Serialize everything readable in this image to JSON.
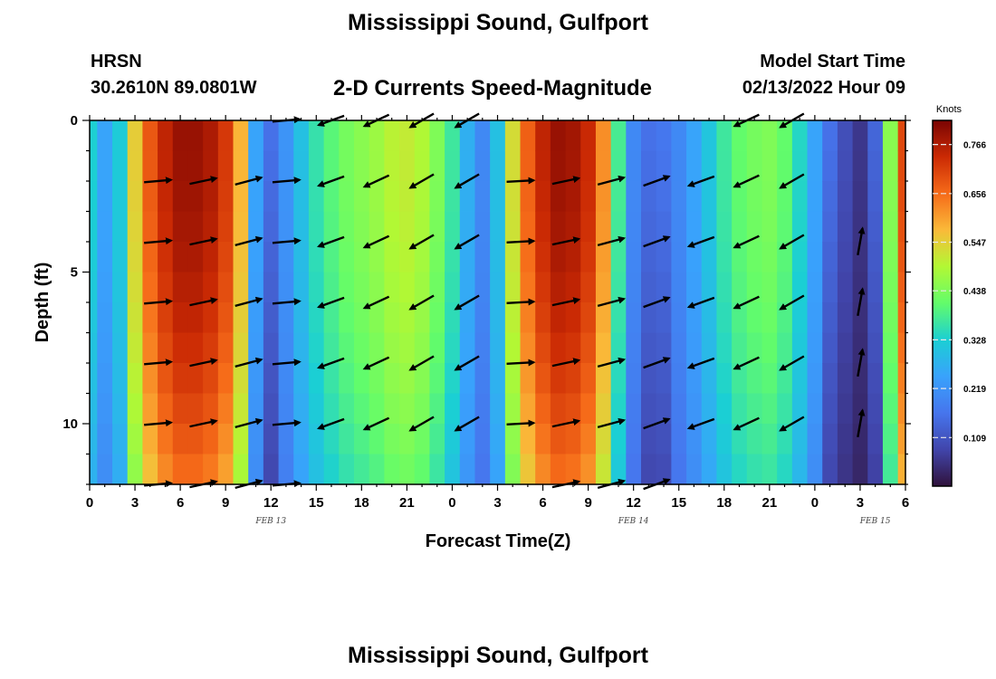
{
  "header": {
    "title": "Mississippi Sound, Gulfport",
    "model": "HRSN",
    "coordinates": "30.2610N  89.0801W",
    "product": "2-D Currents Speed-Magnitude",
    "start_label": "Model Start Time",
    "start_value": "02/13/2022 Hour 09"
  },
  "footer": {
    "title": "Mississippi Sound, Gulfport"
  },
  "chart_data": {
    "type": "heatmap",
    "title": "2-D Currents Speed-Magnitude",
    "xlabel": "Forecast Time(Z)",
    "ylabel": "Depth (ft)",
    "x_range_hours": [
      0,
      54
    ],
    "y_range": [
      0,
      12
    ],
    "y_inverted": true,
    "x_tick_labels": [
      "0",
      "3",
      "6",
      "9",
      "12",
      "15",
      "18",
      "21",
      "0",
      "3",
      "6",
      "9",
      "12",
      "15",
      "18",
      "21",
      "0",
      "3",
      "6"
    ],
    "y_ticks": [
      0,
      5,
      10
    ],
    "date_labels": [
      {
        "label": "FEB 13",
        "hour": 12
      },
      {
        "label": "FEB 14",
        "hour": 36
      },
      {
        "label": "FEB 15",
        "hour": 52
      }
    ],
    "colorbar": {
      "unit": "Knots",
      "min": 0.0,
      "max": 0.82,
      "ticks": [
        "0.766",
        "0.656",
        "0.547",
        "0.438",
        "0.328",
        "0.219",
        "0.109"
      ],
      "tick_values": [
        0.766,
        0.656,
        0.547,
        0.438,
        0.328,
        0.219,
        0.109
      ]
    },
    "surface_speed_profile_knots": [
      {
        "hour": 0,
        "speed": 0.33
      },
      {
        "hour": 1,
        "speed": 0.25
      },
      {
        "hour": 2,
        "speed": 0.32
      },
      {
        "hour": 3,
        "speed": 0.55
      },
      {
        "hour": 4,
        "speed": 0.68
      },
      {
        "hour": 5,
        "speed": 0.75
      },
      {
        "hour": 6,
        "speed": 0.79
      },
      {
        "hour": 7,
        "speed": 0.79
      },
      {
        "hour": 8,
        "speed": 0.77
      },
      {
        "hour": 9,
        "speed": 0.72
      },
      {
        "hour": 10,
        "speed": 0.58
      },
      {
        "hour": 11,
        "speed": 0.25
      },
      {
        "hour": 12,
        "speed": 0.16
      },
      {
        "hour": 13,
        "speed": 0.22
      },
      {
        "hour": 14,
        "speed": 0.3
      },
      {
        "hour": 15,
        "speed": 0.36
      },
      {
        "hour": 16,
        "speed": 0.4
      },
      {
        "hour": 17,
        "speed": 0.43
      },
      {
        "hour": 18,
        "speed": 0.45
      },
      {
        "hour": 19,
        "speed": 0.47
      },
      {
        "hour": 20,
        "speed": 0.5
      },
      {
        "hour": 21,
        "speed": 0.51
      },
      {
        "hour": 22,
        "speed": 0.49
      },
      {
        "hour": 23,
        "speed": 0.44
      },
      {
        "hour": 24,
        "speed": 0.37
      },
      {
        "hour": 25,
        "speed": 0.27
      },
      {
        "hour": 26,
        "speed": 0.2
      },
      {
        "hour": 27,
        "speed": 0.3
      },
      {
        "hour": 28,
        "speed": 0.53
      },
      {
        "hour": 29,
        "speed": 0.67
      },
      {
        "hour": 30,
        "speed": 0.75
      },
      {
        "hour": 31,
        "speed": 0.79
      },
      {
        "hour": 32,
        "speed": 0.78
      },
      {
        "hour": 33,
        "speed": 0.74
      },
      {
        "hour": 34,
        "speed": 0.62
      },
      {
        "hour": 35,
        "speed": 0.38
      },
      {
        "hour": 36,
        "speed": 0.2
      },
      {
        "hour": 37,
        "speed": 0.16
      },
      {
        "hour": 38,
        "speed": 0.17
      },
      {
        "hour": 39,
        "speed": 0.2
      },
      {
        "hour": 40,
        "speed": 0.25
      },
      {
        "hour": 41,
        "speed": 0.31
      },
      {
        "hour": 42,
        "speed": 0.37
      },
      {
        "hour": 43,
        "speed": 0.41
      },
      {
        "hour": 44,
        "speed": 0.43
      },
      {
        "hour": 45,
        "speed": 0.44
      },
      {
        "hour": 46,
        "speed": 0.41
      },
      {
        "hour": 47,
        "speed": 0.34
      },
      {
        "hour": 48,
        "speed": 0.25
      },
      {
        "hour": 49,
        "speed": 0.16
      },
      {
        "hour": 50,
        "speed": 0.1
      },
      {
        "hour": 51,
        "speed": 0.06
      },
      {
        "hour": 52,
        "speed": 0.14
      },
      {
        "hour": 53,
        "speed": 0.45
      },
      {
        "hour": 54,
        "speed": 0.7
      }
    ],
    "vector_rows_depth_ft": [
      0,
      2,
      4,
      6,
      8,
      10,
      12
    ],
    "vector_columns": [
      {
        "hour": 4.5,
        "dir_deg": 5,
        "depths": [
          2,
          4,
          6,
          8,
          10,
          12
        ]
      },
      {
        "hour": 7.5,
        "dir_deg": 12,
        "depths": [
          2,
          4,
          6,
          8,
          10,
          12
        ]
      },
      {
        "hour": 10.5,
        "dir_deg": 15,
        "depths": [
          2,
          4,
          6,
          8,
          10,
          12
        ]
      },
      {
        "hour": 13.0,
        "dir_deg": 5,
        "depths": [
          0,
          2,
          4,
          6,
          8,
          10,
          12
        ]
      },
      {
        "hour": 16.0,
        "dir_deg": 200,
        "depths": [
          0,
          2,
          4,
          6,
          8,
          10
        ]
      },
      {
        "hour": 19.0,
        "dir_deg": 205,
        "depths": [
          0,
          2,
          4,
          6,
          8,
          10
        ]
      },
      {
        "hour": 22.0,
        "dir_deg": 210,
        "depths": [
          0,
          2,
          4,
          6,
          8,
          10
        ]
      },
      {
        "hour": 25.0,
        "dir_deg": 210,
        "depths": [
          0,
          2,
          4,
          6,
          8,
          10
        ]
      },
      {
        "hour": 28.5,
        "dir_deg": 3,
        "depths": [
          2,
          4,
          6,
          8,
          10
        ]
      },
      {
        "hour": 31.5,
        "dir_deg": 12,
        "depths": [
          2,
          4,
          6,
          8,
          10,
          12
        ]
      },
      {
        "hour": 34.5,
        "dir_deg": 15,
        "depths": [
          2,
          4,
          6,
          8,
          10,
          12
        ]
      },
      {
        "hour": 37.5,
        "dir_deg": 20,
        "depths": [
          2,
          4,
          6,
          8,
          10,
          12
        ]
      },
      {
        "hour": 40.5,
        "dir_deg": 200,
        "depths": [
          2,
          4,
          6,
          8,
          10
        ]
      },
      {
        "hour": 43.5,
        "dir_deg": 205,
        "depths": [
          0,
          2,
          4,
          6,
          8,
          10
        ]
      },
      {
        "hour": 46.5,
        "dir_deg": 210,
        "depths": [
          0,
          2,
          4,
          6,
          8,
          10
        ]
      },
      {
        "hour": 51.0,
        "dir_deg": 80,
        "depths": [
          4,
          6,
          8,
          10
        ]
      }
    ]
  }
}
